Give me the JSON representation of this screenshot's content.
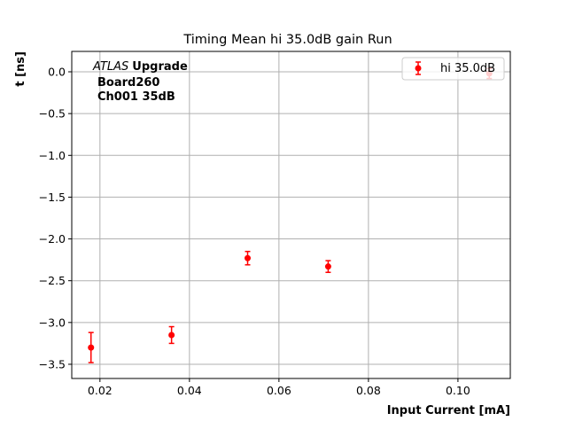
{
  "chart_data": {
    "type": "scatter",
    "title": "Timing Mean hi 35.0dB gain Run",
    "xlabel": "Input Current [mA]",
    "ylabel": "t [ns]",
    "xlim": [
      0.0137,
      0.1117
    ],
    "ylim": [
      -3.67,
      0.244
    ],
    "xticks": [
      0.02,
      0.04,
      0.06,
      0.08,
      0.1
    ],
    "xtick_labels": [
      "0.02",
      "0.04",
      "0.06",
      "0.08",
      "0.10"
    ],
    "yticks": [
      0.0,
      -0.5,
      -1.0,
      -1.5,
      -2.0,
      -2.5,
      -3.0,
      -3.5
    ],
    "ytick_labels": [
      "0.0",
      "−0.5",
      "−1.0",
      "−1.5",
      "−2.0",
      "−2.5",
      "−3.0",
      "−3.5"
    ],
    "grid": true,
    "legend_position": "top-right",
    "annotation": {
      "italic": "ATLAS",
      "bold": "Upgrade",
      "line2": "Board260",
      "line3": "Ch001 35dB"
    },
    "series": [
      {
        "name": "hi 35.0dB",
        "color": "#ff0000",
        "x": [
          0.018,
          0.036,
          0.053,
          0.071,
          0.107
        ],
        "y": [
          -3.3,
          -3.15,
          -2.23,
          -2.33,
          -0.02
        ],
        "yerr": [
          0.18,
          0.1,
          0.08,
          0.07,
          0.06
        ]
      }
    ]
  }
}
